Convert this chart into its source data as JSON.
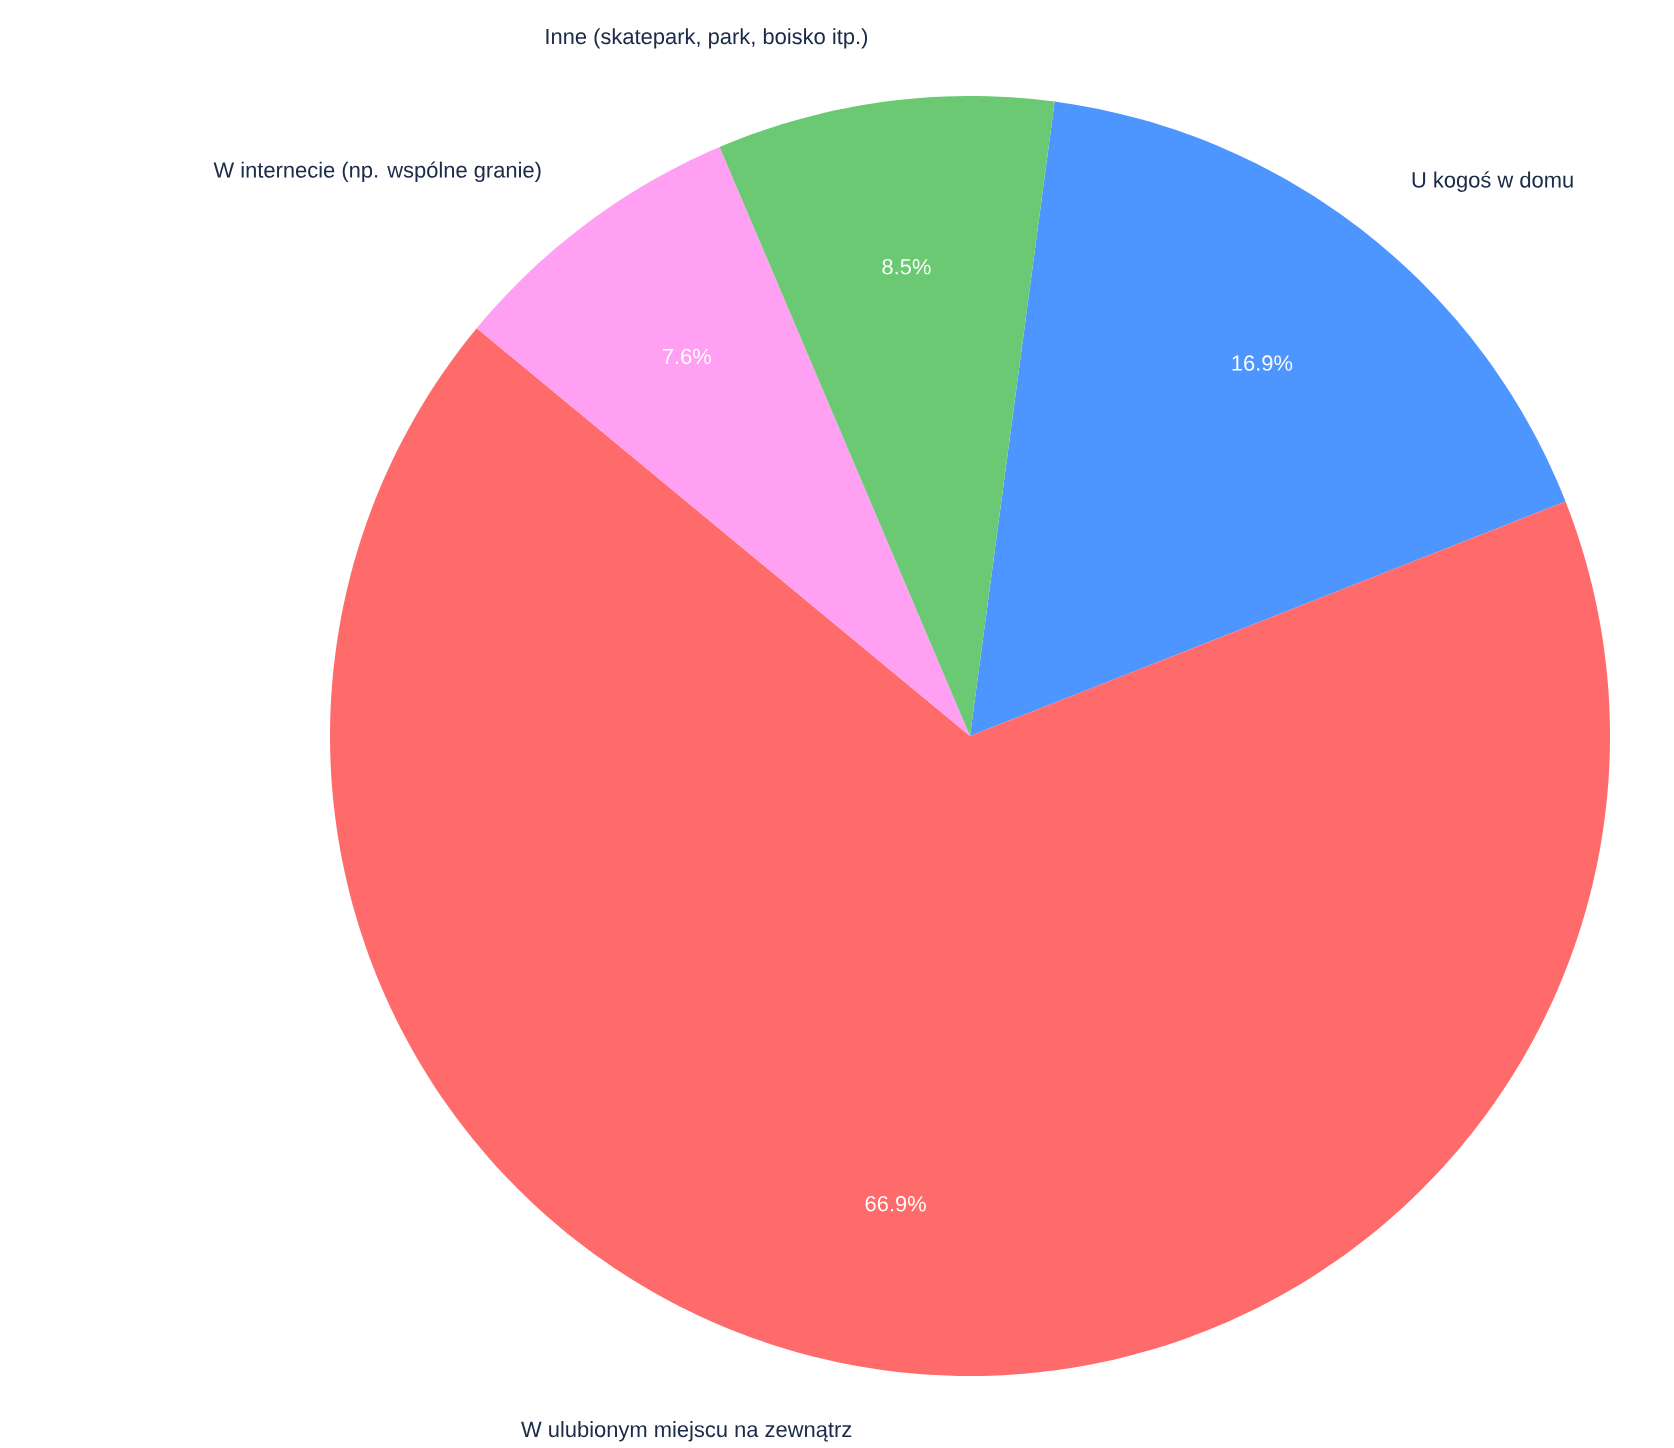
{
  "chart_data": {
    "type": "pie",
    "categories": [
      "U kogoś w domu",
      "W ulubionym miejscu na zewnątrz",
      "W internecie (np. wspólne granie)",
      "Inne (skatepark, park, boisko itp.)"
    ],
    "values": [
      16.9,
      66.9,
      7.6,
      8.5
    ],
    "value_labels": [
      "16.9%",
      "66.9%",
      "7.6%",
      "8.5%"
    ],
    "colors": [
      "#4d96ff",
      "#ff6b6b",
      "#ffa0f3",
      "#6bc873"
    ]
  }
}
